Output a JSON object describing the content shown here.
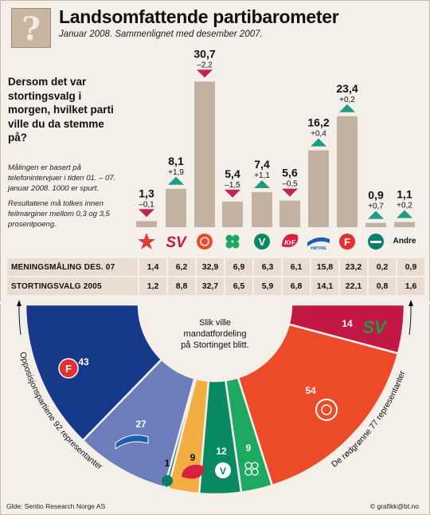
{
  "header": {
    "title": "Landsomfattende partibarometer",
    "subtitle": "Januar 2008. Sammenlignet med desember 2007."
  },
  "question": "Dersom det var stortingsvalg i morgen, hvilket parti ville du da stemme på?",
  "method": {
    "line1": "Målingen er basert på telefonintervjuer i tiden 01. – 07. januar 2008. 1000 er spurt.",
    "line2": "Resultatene må tolkes innen feilmarginer mellom 0,3 og 3,5 prosentpoeng."
  },
  "colors": {
    "bar": "#c3b2a1",
    "up": "#1d9c83",
    "down": "#c0245c",
    "background": "#f4efe8",
    "table_bg": "#e8ddd0",
    "frp": "#17398a",
    "hoyre": "#6b7dba",
    "krf": "#f2ae43",
    "venstre": "#0a8a63",
    "sp": "#1ea862",
    "ap": "#ed4a2a",
    "sv": "#c31744",
    "kystpartiet": "#0a7d6b"
  },
  "table": {
    "row1_label": "MENINGSMÅLING DES. 07",
    "row2_label": "STORTINGSVALG 2005"
  },
  "chart_data": [
    {
      "type": "bar",
      "categories": [
        "Rødt",
        "SV",
        "Ap",
        "Sp",
        "Venstre",
        "KrF",
        "Høyre",
        "FrP",
        "Kystpartiet",
        "Andre"
      ],
      "category_labels": [
        "",
        "",
        "",
        "",
        "",
        "",
        "",
        "",
        "",
        "Andre"
      ],
      "values": [
        1.3,
        8.1,
        30.7,
        5.4,
        7.4,
        5.6,
        16.2,
        23.4,
        0.9,
        1.1
      ],
      "value_labels": [
        "1,3",
        "8,1",
        "30,7",
        "5,4",
        "7,4",
        "5,6",
        "16,2",
        "23,4",
        "0,9",
        "1,1"
      ],
      "changes": [
        -0.1,
        1.9,
        -2.2,
        -1.5,
        1.1,
        -0.5,
        0.4,
        0.2,
        0.7,
        0.2
      ],
      "change_labels": [
        "–0,1",
        "+1,9",
        "–2,2",
        "–1,5",
        "+1,1",
        "–0,5",
        "+0,4",
        "+0,2",
        "+0,7",
        "+0,2"
      ],
      "previous_poll_des_07": [
        "1,4",
        "6,2",
        "32,9",
        "6,9",
        "6,3",
        "6,1",
        "15,8",
        "23,2",
        "0,2",
        "0,9"
      ],
      "election_2005": [
        "1,2",
        "8,8",
        "32,7",
        "6,5",
        "5,9",
        "6,8",
        "14,1",
        "22,1",
        "0,8",
        "1,6"
      ]
    },
    {
      "type": "pie",
      "title": "Slik ville mandatfordeling på Stortinget blitt.",
      "slices": [
        {
          "party": "FrP",
          "seats": 43
        },
        {
          "party": "Høyre",
          "seats": 27
        },
        {
          "party": "Kystpartiet",
          "seats": 1
        },
        {
          "party": "KrF",
          "seats": 9
        },
        {
          "party": "Venstre",
          "seats": 12
        },
        {
          "party": "Sp",
          "seats": 9
        },
        {
          "party": "Ap",
          "seats": 54
        },
        {
          "party": "SV",
          "seats": 14
        }
      ],
      "left_label": "Opposisjonspartiene 92 representanter",
      "right_label": "De rødgrønne 77 representanter"
    }
  ],
  "footer": {
    "source": "Glde: Sentio Research Norge AS",
    "credit": "© grafikk@bt.no"
  }
}
